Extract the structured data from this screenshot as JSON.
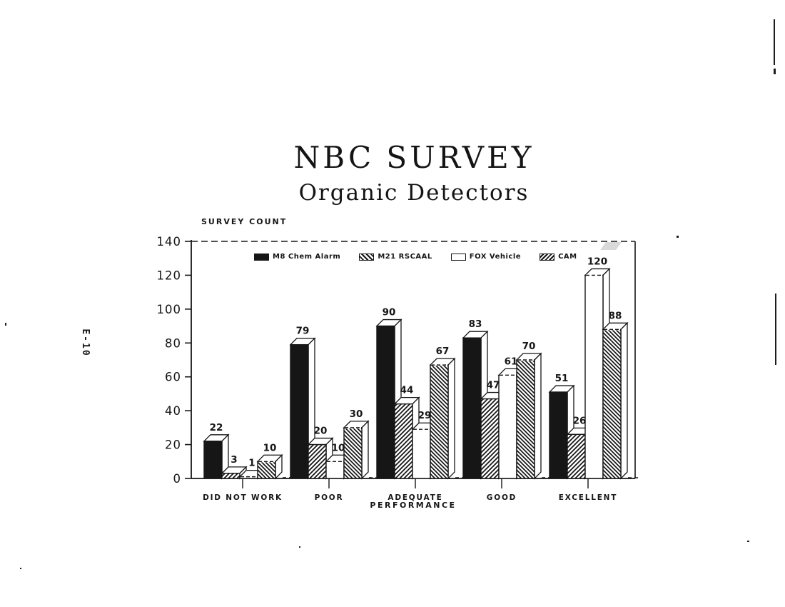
{
  "page": {
    "vertical_label": "E-10"
  },
  "chart_data": {
    "type": "bar",
    "title": "NBC SURVEY",
    "subtitle": "Organic Detectors",
    "ylabel": "SURVEY COUNT",
    "xlabel": "PERFORMANCE",
    "ylim": [
      0,
      140
    ],
    "yticks": [
      0,
      20,
      40,
      60,
      80,
      100,
      120,
      140
    ],
    "grid": false,
    "legend_position": "top-inside",
    "bar_style": "3d",
    "categories": [
      "DID NOT WORK",
      "POOR",
      "ADEQUATE",
      "GOOD",
      "EXCELLENT"
    ],
    "series": [
      {
        "name": "M8 Chem Alarm",
        "pattern": "solid-black",
        "values": [
          22,
          79,
          90,
          83,
          51
        ]
      },
      {
        "name": "M21 RSCAAL",
        "pattern": "hatch-forward",
        "values": [
          3,
          20,
          44,
          47,
          26
        ]
      },
      {
        "name": "FOX Vehicle",
        "pattern": "white",
        "values": [
          1,
          10,
          29,
          61,
          120
        ]
      },
      {
        "name": "CAM",
        "pattern": "hatch-back",
        "values": [
          10,
          30,
          67,
          70,
          88
        ]
      }
    ]
  },
  "colors": {
    "ink": "#161616",
    "paper": "#ffffff"
  }
}
